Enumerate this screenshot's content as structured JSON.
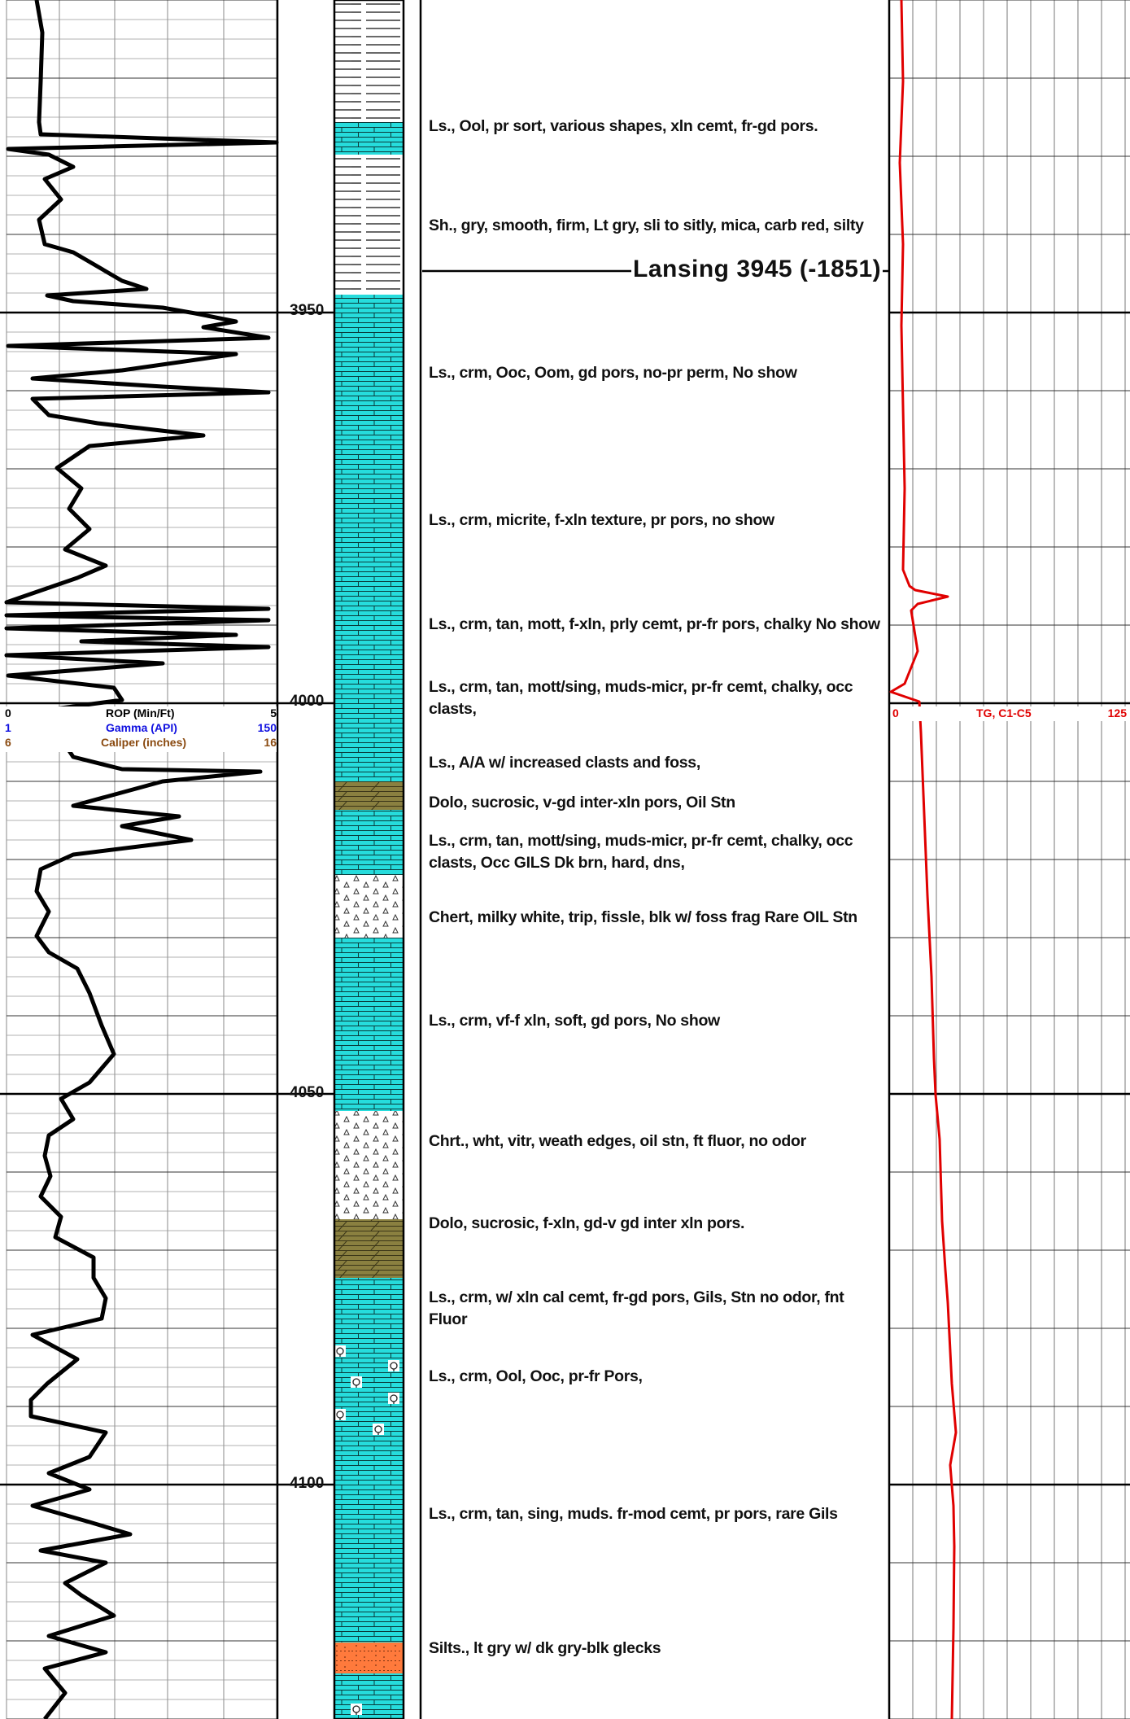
{
  "depth_track": {
    "labels": [
      "3950",
      "4000",
      "4050",
      "4100"
    ]
  },
  "formation_top": {
    "label": "Lansing 3945 (-1851)"
  },
  "left_track": {
    "scales": [
      {
        "min": "0",
        "name": "ROP (Min/Ft)",
        "max": "5",
        "color": "#000000"
      },
      {
        "min": "1",
        "name": "Gamma (API)",
        "max": "150",
        "color": "#1010e0"
      },
      {
        "min": "6",
        "name": "Caliper (inches)",
        "max": "16",
        "color": "#8a4a10"
      }
    ]
  },
  "right_track": {
    "scale": {
      "min": "0",
      "name": "TG, C1-C5",
      "max": "125",
      "color": "#e00000"
    }
  },
  "lithology_colors": {
    "limestone": "#26dcdc",
    "dolomite": "#8a8040",
    "chert": "#ffffff",
    "siltstone": "#ff7a3c",
    "shale": "#ffffff"
  },
  "descriptions": [
    {
      "text": "Ls., Ool, pr sort, various shapes, xln cemt, fr-gd pors."
    },
    {
      "text": "Sh., gry, smooth, firm,  Lt gry, sli to sitly, mica, carb  red, silty"
    },
    {
      "text": "Ls., crm, Ooc, Oom, gd pors, no-pr perm, No show"
    },
    {
      "text": "Ls.,  crm, micrite, f-xln texture, pr pors, no show"
    },
    {
      "text": "Ls., crm, tan, mott,  f-xln, prly cemt,  pr-fr pors, chalky  No show"
    },
    {
      "text": "Ls., crm, tan, mott/sing, muds-micr, pr-fr cemt, chalky,  occ clasts,"
    },
    {
      "text": "Ls., A/A w/ increased clasts and foss,"
    },
    {
      "text": "Dolo, sucrosic, v-gd inter-xln pors, Oil Stn"
    },
    {
      "text": "Ls., crm, tan, mott/sing, muds-micr, pr-fr cemt, chalky,  occ clasts, Occ GILS  Dk brn, hard, dns,"
    },
    {
      "text": "Chert, milky white, trip, fissle, blk w/ foss frag  Rare OIL Stn"
    },
    {
      "text": "Ls., crm, vf-f xln, soft, gd pors, No show"
    },
    {
      "text": "Chrt., wht, vitr, weath edges, oil stn, ft fluor, no odor"
    },
    {
      "text": "Dolo, sucrosic, f-xln,  gd-v gd inter xln pors."
    },
    {
      "text": "Ls., crm, w/ xln cal cemt, fr-gd pors,  Gils, Stn no odor, fnt Fluor"
    },
    {
      "text": "Ls., crm, Ool, Ooc, pr-fr Pors,"
    },
    {
      "text": "Ls., crm, tan, sing, muds. fr-mod cemt, pr pors, rare Gils"
    },
    {
      "text": "Silts., lt gry w/ dk gry-blk glecks"
    }
  ]
}
